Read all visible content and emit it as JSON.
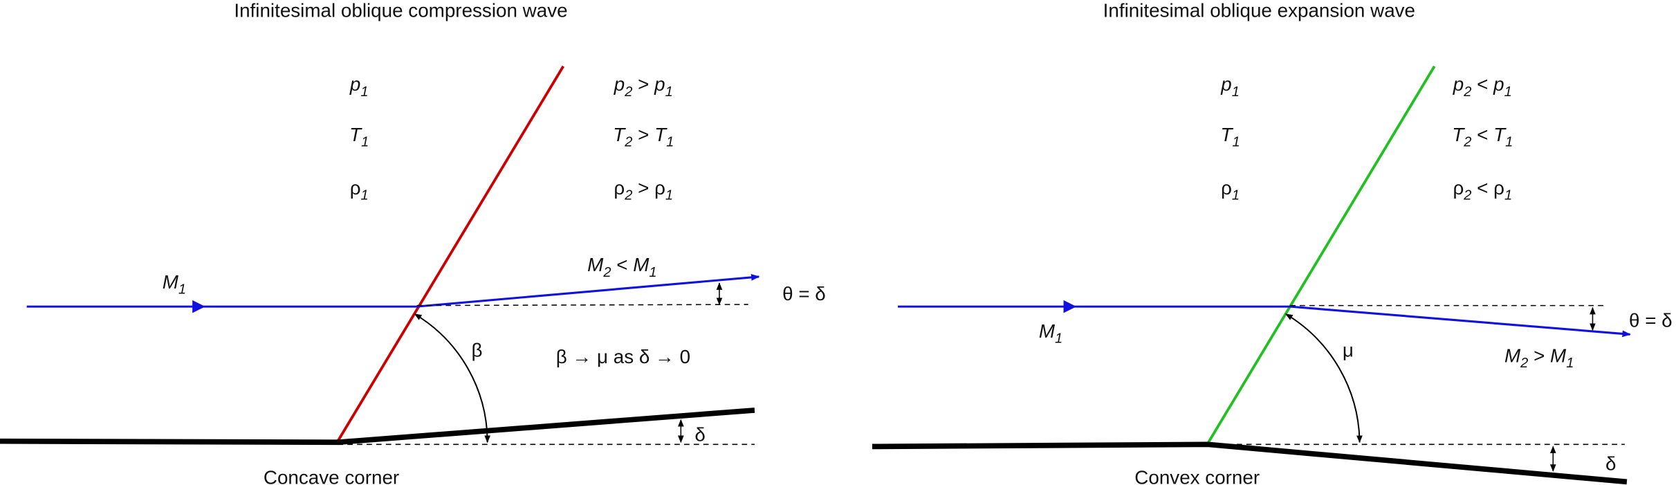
{
  "panels": [
    {
      "title": "Infinitesimal oblique compression wave",
      "upstream_state": [
        {
          "symbol": "p",
          "subscript": "1"
        },
        {
          "symbol": "T",
          "subscript": "1"
        },
        {
          "symbol": "ρ",
          "subscript": "1"
        }
      ],
      "downstream_state": [
        {
          "symbol": "p",
          "subscript": "2",
          "relation": ">",
          "compare_symbol": "p",
          "compare_subscript": "1"
        },
        {
          "symbol": "T",
          "subscript": "2",
          "relation": ">",
          "compare_symbol": "T",
          "compare_subscript": "1"
        },
        {
          "symbol": "ρ",
          "subscript": "2",
          "relation": ">",
          "compare_symbol": "ρ",
          "compare_subscript": "1"
        }
      ],
      "upstream_mach": {
        "symbol": "M",
        "subscript": "1"
      },
      "downstream_mach": {
        "symbol": "M",
        "subscript": "2",
        "relation": "<",
        "compare_symbol": "M",
        "compare_subscript": "1"
      },
      "flow_angle_label": "θ = δ",
      "wave_angle_label": "β",
      "deflection_label": "δ",
      "note": "β → μ as δ → 0",
      "corner_label": "Concave corner"
    },
    {
      "title": "Infinitesimal oblique expansion wave",
      "upstream_state": [
        {
          "symbol": "p",
          "subscript": "1"
        },
        {
          "symbol": "T",
          "subscript": "1"
        },
        {
          "symbol": "ρ",
          "subscript": "1"
        }
      ],
      "downstream_state": [
        {
          "symbol": "p",
          "subscript": "2",
          "relation": "<",
          "compare_symbol": "p",
          "compare_subscript": "1"
        },
        {
          "symbol": "T",
          "subscript": "2",
          "relation": "<",
          "compare_symbol": "T",
          "compare_subscript": "1"
        },
        {
          "symbol": "ρ",
          "subscript": "2",
          "relation": "<",
          "compare_symbol": "ρ",
          "compare_subscript": "1"
        }
      ],
      "upstream_mach": {
        "symbol": "M",
        "subscript": "1"
      },
      "downstream_mach": {
        "symbol": "M",
        "subscript": "2",
        "relation": ">",
        "compare_symbol": "M",
        "compare_subscript": "1"
      },
      "flow_angle_label": "θ = δ",
      "wave_angle_label": "μ",
      "deflection_label": "δ",
      "corner_label": "Convex corner"
    }
  ]
}
